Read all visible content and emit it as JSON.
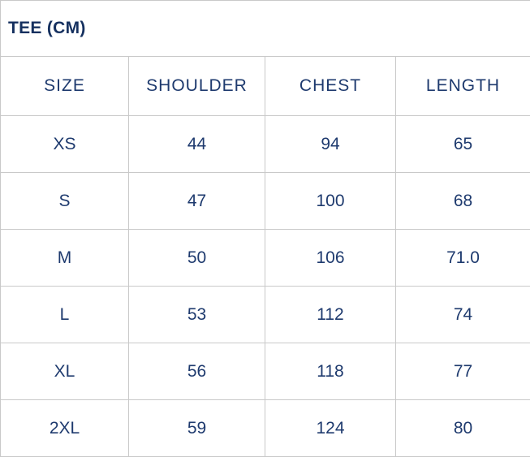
{
  "title": "TEE (CM)",
  "table": {
    "columns": [
      "SIZE",
      "SHOULDER",
      "CHEST",
      "LENGTH"
    ],
    "rows": [
      {
        "size": "XS",
        "shoulder": "44",
        "chest": "94",
        "length": "65"
      },
      {
        "size": "S",
        "shoulder": "47",
        "chest": "100",
        "length": "68"
      },
      {
        "size": "M",
        "shoulder": "50",
        "chest": "106",
        "length": "71.0"
      },
      {
        "size": "L",
        "shoulder": "53",
        "chest": "112",
        "length": "74"
      },
      {
        "size": "XL",
        "shoulder": "56",
        "chest": "118",
        "length": "77"
      },
      {
        "size": "2XL",
        "shoulder": "59",
        "chest": "124",
        "length": "80"
      }
    ]
  },
  "colors": {
    "text": "#1e3a6e",
    "title_text": "#15305f",
    "border": "#c9c9c9",
    "background": "#ffffff"
  }
}
